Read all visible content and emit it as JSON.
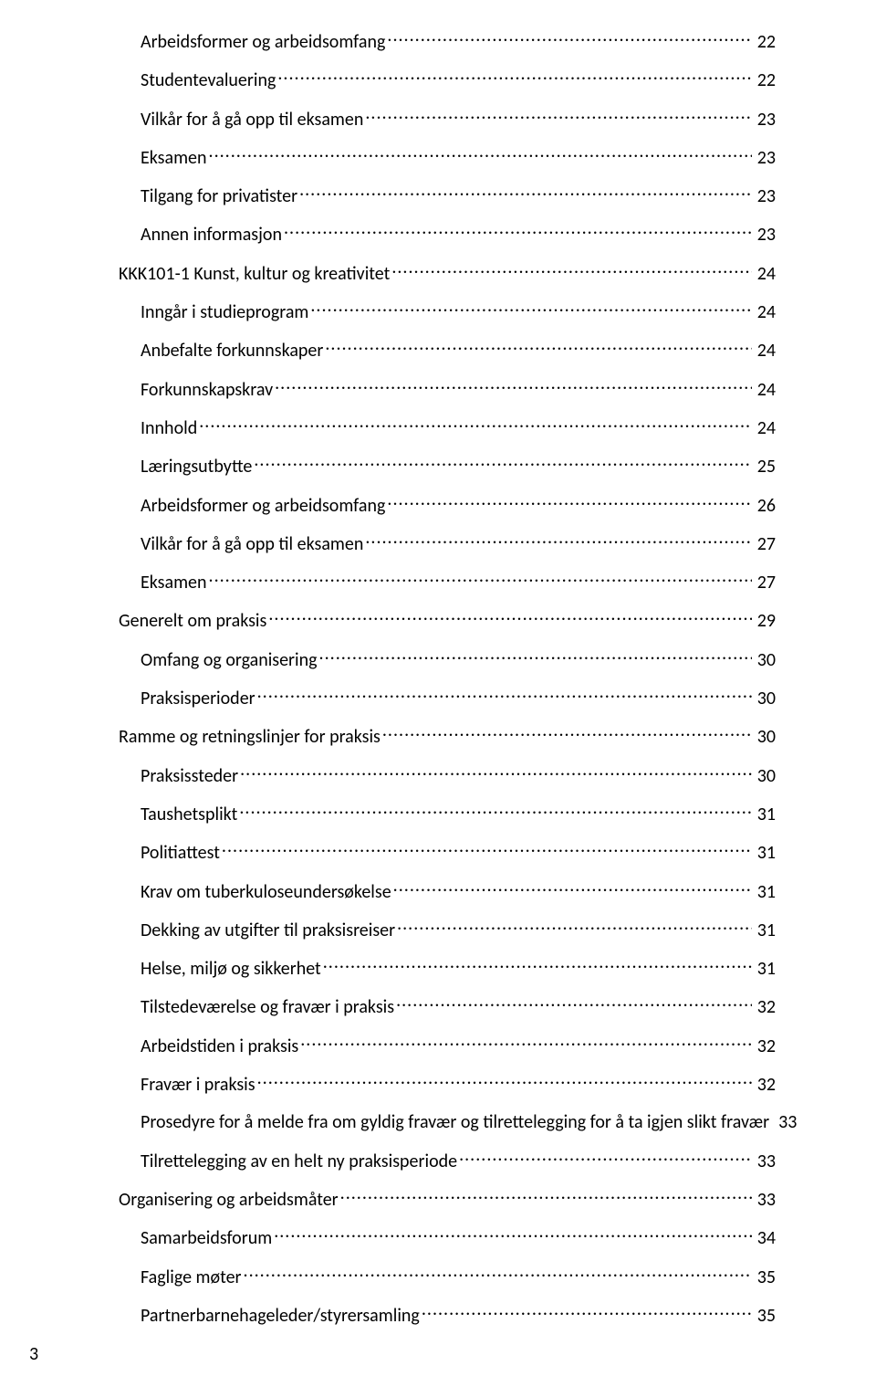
{
  "colors": {
    "text": "#000000",
    "background": "#ffffff"
  },
  "typography": {
    "font_family": "Calibri",
    "font_size_pt": 11,
    "line_spacing": 1.5
  },
  "page_number": "3",
  "toc": [
    {
      "label": "Arbeidsformer og arbeidsomfang",
      "page": "22",
      "indent": 1
    },
    {
      "label": "Studentevaluering",
      "page": "22",
      "indent": 1
    },
    {
      "label": "Vilkår for å gå opp til eksamen",
      "page": "23",
      "indent": 1
    },
    {
      "label": "Eksamen",
      "page": "23",
      "indent": 1
    },
    {
      "label": "Tilgang for privatister",
      "page": "23",
      "indent": 1
    },
    {
      "label": "Annen informasjon",
      "page": "23",
      "indent": 1
    },
    {
      "label": "KKK101-1 Kunst, kultur og kreativitet",
      "page": "24",
      "indent": 0
    },
    {
      "label": "Inngår i studieprogram",
      "page": "24",
      "indent": 1
    },
    {
      "label": "Anbefalte forkunnskaper",
      "page": "24",
      "indent": 1
    },
    {
      "label": "Forkunnskapskrav",
      "page": "24",
      "indent": 1
    },
    {
      "label": "Innhold",
      "page": "24",
      "indent": 1
    },
    {
      "label": "Læringsutbytte",
      "page": "25",
      "indent": 1
    },
    {
      "label": "Arbeidsformer og arbeidsomfang",
      "page": "26",
      "indent": 1
    },
    {
      "label": "Vilkår for å gå opp til eksamen",
      "page": "27",
      "indent": 1
    },
    {
      "label": "Eksamen",
      "page": "27",
      "indent": 1
    },
    {
      "label": "Generelt om praksis",
      "page": "29",
      "indent": 0
    },
    {
      "label": "Omfang og organisering",
      "page": "30",
      "indent": 1
    },
    {
      "label": "Praksisperioder",
      "page": "30",
      "indent": 1
    },
    {
      "label": "Ramme og retningslinjer for praksis",
      "page": "30",
      "indent": 0
    },
    {
      "label": "Praksissteder",
      "page": "30",
      "indent": 1
    },
    {
      "label": "Taushetsplikt",
      "page": "31",
      "indent": 1
    },
    {
      "label": "Politiattest",
      "page": "31",
      "indent": 1
    },
    {
      "label": "Krav om tuberkuloseundersøkelse",
      "page": "31",
      "indent": 1
    },
    {
      "label": "Dekking av utgifter til praksisreiser",
      "page": "31",
      "indent": 1
    },
    {
      "label": "Helse, miljø og sikkerhet",
      "page": "31",
      "indent": 1
    },
    {
      "label": "Tilstedeværelse og fravær i praksis",
      "page": "32",
      "indent": 1
    },
    {
      "label": "Arbeidstiden i praksis",
      "page": "32",
      "indent": 1
    },
    {
      "label": "Fravær i praksis",
      "page": "32",
      "indent": 1
    },
    {
      "label": "Prosedyre for å melde fra om gyldig fravær og tilrettelegging for å ta igjen slikt fravær",
      "page": "33",
      "indent": 1,
      "nodots": true
    },
    {
      "label": "Tilrettelegging av en helt ny praksisperiode",
      "page": "33",
      "indent": 1
    },
    {
      "label": "Organisering og arbeidsmåter",
      "page": "33",
      "indent": 0
    },
    {
      "label": "Samarbeidsforum",
      "page": "34",
      "indent": 1
    },
    {
      "label": "Faglige møter",
      "page": "35",
      "indent": 1
    },
    {
      "label": "Partnerbarnehageleder/styrersamling",
      "page": "35",
      "indent": 1
    }
  ]
}
